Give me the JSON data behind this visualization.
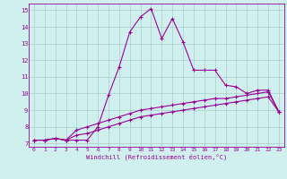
{
  "xlabel": "Windchill (Refroidissement éolien,°C)",
  "ylabel": "",
  "bg_color": "#cff0ee",
  "line_color": "#990099",
  "xlim": [
    -0.5,
    23.5
  ],
  "ylim": [
    6.8,
    15.4
  ],
  "x_ticks": [
    0,
    1,
    2,
    3,
    4,
    5,
    6,
    7,
    8,
    9,
    10,
    11,
    12,
    13,
    14,
    15,
    16,
    17,
    18,
    19,
    20,
    21,
    22,
    23
  ],
  "y_ticks": [
    7,
    8,
    9,
    10,
    11,
    12,
    13,
    14,
    15
  ],
  "line1_x": [
    0,
    1,
    2,
    3,
    4,
    5,
    6,
    7,
    8,
    9,
    10,
    11,
    12,
    13,
    14,
    15,
    16,
    17,
    18,
    19,
    20,
    21,
    22,
    23
  ],
  "line1_y": [
    7.2,
    7.2,
    7.3,
    7.2,
    7.2,
    7.2,
    8.0,
    9.9,
    11.6,
    13.7,
    14.6,
    15.1,
    13.3,
    14.5,
    13.1,
    11.4,
    11.4,
    11.4,
    10.5,
    10.4,
    10.0,
    10.2,
    10.2,
    8.9
  ],
  "line2_x": [
    0,
    1,
    2,
    3,
    4,
    5,
    6,
    7,
    8,
    9,
    10,
    11,
    12,
    13,
    14,
    15,
    16,
    17,
    18,
    19,
    20,
    21,
    22,
    23
  ],
  "line2_y": [
    7.2,
    7.2,
    7.3,
    7.2,
    7.8,
    8.0,
    8.2,
    8.4,
    8.6,
    8.8,
    9.0,
    9.1,
    9.2,
    9.3,
    9.4,
    9.5,
    9.6,
    9.7,
    9.7,
    9.8,
    9.9,
    10.0,
    10.1,
    8.9
  ],
  "line3_x": [
    0,
    1,
    2,
    3,
    4,
    5,
    6,
    7,
    8,
    9,
    10,
    11,
    12,
    13,
    14,
    15,
    16,
    17,
    18,
    19,
    20,
    21,
    22,
    23
  ],
  "line3_y": [
    7.2,
    7.2,
    7.3,
    7.2,
    7.5,
    7.6,
    7.8,
    8.0,
    8.2,
    8.4,
    8.6,
    8.7,
    8.8,
    8.9,
    9.0,
    9.1,
    9.2,
    9.3,
    9.4,
    9.5,
    9.6,
    9.7,
    9.8,
    8.9
  ]
}
